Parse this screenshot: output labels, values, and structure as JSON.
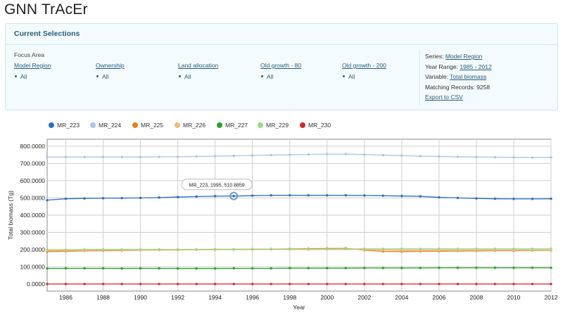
{
  "app": {
    "title": "GNN TrAcEr"
  },
  "selections": {
    "title": "Current Selections",
    "focus_area_label": "Focus Area",
    "filters": [
      {
        "label": "Model Region",
        "value": "All"
      },
      {
        "label": "Ownership",
        "value": "All"
      },
      {
        "label": "Land allocation",
        "value": "All"
      },
      {
        "label": "Old growth - 80",
        "value": "All"
      },
      {
        "label": "Old growth - 200",
        "value": "All"
      }
    ],
    "series_label": "Series:",
    "series_value": "Model Region",
    "year_range_label": "Year Range:",
    "year_range_value": "1985 - 2012",
    "variable_label": "Variable:",
    "variable_value": "Total biomass",
    "records_label": "Matching Records:",
    "records_value": "9258",
    "export_label": "Export to CSV"
  },
  "tooltip": {
    "text": "MR_223, 1995, 510.8859"
  },
  "chart_data": {
    "type": "line",
    "xlabel": "Year",
    "ylabel": "Total biomass (Tg)",
    "xlim": [
      1985,
      2012
    ],
    "ylim": [
      -40,
      840
    ],
    "xticks": [
      "1986",
      "1988",
      "1990",
      "1992",
      "1994",
      "1996",
      "1998",
      "2000",
      "2002",
      "2004",
      "2006",
      "2008",
      "2010",
      "2012"
    ],
    "yticks": [
      "0.0000",
      "100.0000",
      "200.0000",
      "300.0000",
      "400.0000",
      "500.0000",
      "600.0000",
      "700.0000",
      "800.0000"
    ],
    "grid": true,
    "legend_position": "top-left",
    "x": [
      1985,
      1986,
      1987,
      1988,
      1989,
      1990,
      1991,
      1992,
      1993,
      1994,
      1995,
      1996,
      1997,
      1998,
      1999,
      2000,
      2001,
      2002,
      2003,
      2004,
      2005,
      2006,
      2007,
      2008,
      2009,
      2010,
      2011,
      2012
    ],
    "series": [
      {
        "name": "MR_223",
        "color": "#2e6fb7",
        "values": [
          487,
          495,
          497,
          498,
          499,
          500,
          502,
          505,
          508,
          510,
          510.9,
          513,
          515,
          515,
          515,
          515,
          515,
          514,
          513,
          511,
          509,
          503,
          500,
          497,
          495,
          494,
          494,
          495
        ]
      },
      {
        "name": "MR_224",
        "color": "#a9c4e8",
        "values": [
          736,
          737,
          737,
          737,
          737,
          737,
          738,
          738,
          740,
          742,
          744,
          746,
          748,
          750,
          752,
          754,
          754,
          751,
          748,
          745,
          742,
          740,
          738,
          737,
          736,
          735,
          734,
          735
        ]
      },
      {
        "name": "MR_225",
        "color": "#f07c1a",
        "values": [
          189,
          191,
          193,
          194,
          195,
          197,
          198,
          199,
          200,
          201,
          202,
          203,
          204,
          205,
          206,
          207,
          208,
          197,
          190,
          189,
          190,
          191,
          192,
          193,
          194,
          194,
          195,
          196
        ]
      },
      {
        "name": "MR_226",
        "color": "#f5b87a",
        "values": [
          195,
          196,
          196,
          197,
          197,
          198,
          198,
          198,
          199,
          199,
          200,
          200,
          201,
          201,
          201,
          202,
          203,
          200,
          198,
          196,
          196,
          196,
          196,
          197,
          197,
          197,
          197,
          198
        ]
      },
      {
        "name": "MR_227",
        "color": "#2ca02c",
        "values": [
          91,
          92,
          92,
          92,
          91,
          92,
          92,
          91,
          91,
          91,
          92,
          92,
          92,
          93,
          93,
          93,
          93,
          94,
          94,
          94,
          94,
          95,
          95,
          95,
          95,
          95,
          95,
          95
        ]
      },
      {
        "name": "MR_229",
        "color": "#98d98a",
        "values": [
          200,
          200,
          201,
          201,
          201,
          202,
          202,
          202,
          202,
          203,
          203,
          204,
          204,
          204,
          204,
          204,
          205,
          205,
          205,
          205,
          205,
          205,
          205,
          205,
          205,
          205,
          205,
          205
        ]
      },
      {
        "name": "MR_230",
        "color": "#d62728",
        "values": [
          1,
          1,
          1,
          1,
          1,
          1,
          1,
          1,
          1,
          1,
          1,
          1,
          1,
          1,
          1,
          1,
          1,
          1,
          1,
          1,
          1,
          1,
          1,
          1,
          1,
          1,
          1,
          1
        ]
      }
    ],
    "highlight": {
      "series": "MR_223",
      "x": 1995,
      "y": 510.8859
    }
  }
}
